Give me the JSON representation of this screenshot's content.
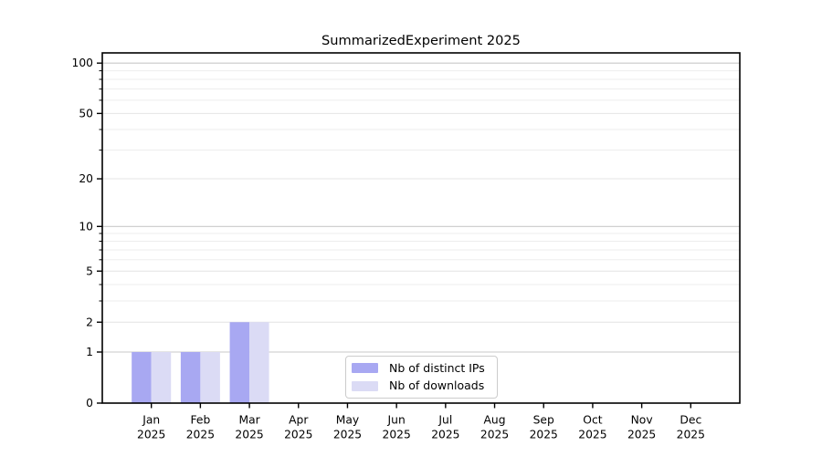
{
  "chart_data": {
    "type": "bar",
    "title": "SummarizedExperiment 2025",
    "categories": [
      "Jan",
      "Feb",
      "Mar",
      "Apr",
      "May",
      "Jun",
      "Jul",
      "Aug",
      "Sep",
      "Oct",
      "Nov",
      "Dec"
    ],
    "category_year": "2025",
    "series": [
      {
        "name": "Nb of distinct IPs",
        "color": "#a8a8f2",
        "values": [
          1,
          1,
          2,
          0,
          0,
          0,
          0,
          0,
          0,
          0,
          0,
          0
        ]
      },
      {
        "name": "Nb of downloads",
        "color": "#dbdbf5",
        "values": [
          1,
          1,
          2,
          0,
          0,
          0,
          0,
          0,
          0,
          0,
          0,
          0
        ]
      }
    ],
    "y_axis": {
      "scale": "log1p",
      "tick_values": [
        0,
        1,
        2,
        5,
        10,
        20,
        50,
        100
      ],
      "tick_labels": [
        "0",
        "1",
        "2",
        "5",
        "10",
        "20",
        "50",
        "100"
      ],
      "decade_tick_values": [
        1,
        10,
        100
      ],
      "minor_tick_values": [
        3,
        4,
        6,
        7,
        8,
        9,
        30,
        40,
        60,
        70,
        80,
        90
      ],
      "ylim": [
        0,
        115
      ]
    },
    "legend": {
      "position": "lower-center"
    },
    "grid": true,
    "colors": {
      "grid_major": "#c9c9c9",
      "grid_minor": "#ededed",
      "spine": "#000000",
      "text": "#000000",
      "background": "#ffffff"
    }
  }
}
